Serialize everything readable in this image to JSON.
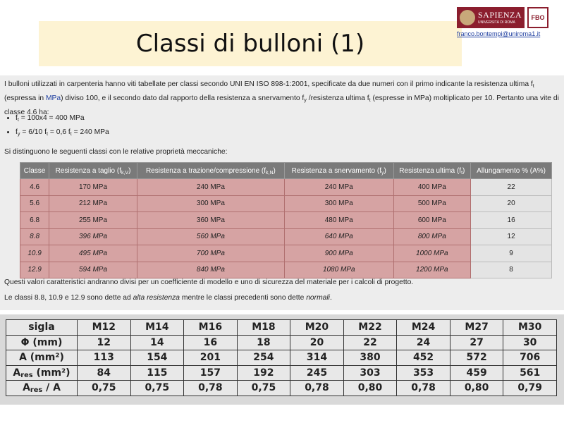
{
  "header": {
    "title": "Classi di bulloni (1)",
    "logo_name": "SAPIENZA",
    "logo_sub": "UNIVERSITÀ DI ROMA",
    "email": "franco.bontempi@uniroma1.it"
  },
  "intro": [
    {
      "text": "I bulloni utilizzati in carpenteria hanno viti tabellate per classi secondo UNI EN ISO 898-1:2001, specificate da due numeri con il primo indicante la resistenza ultima f",
      "sub": "t"
    },
    {
      "text": " (espressa in "
    },
    {
      "text": "MPa",
      "link": true
    },
    {
      "text": ") diviso 100, e il secondo dato dal rapporto della resistenza a snervamento f",
      "sub": "y"
    },
    {
      "text": " /resistenza ultima f",
      "sub": "t"
    },
    {
      "text": " (espresse in MPa) moltiplicato per 10. Pertanto una vite di classe 4.6 ha:"
    }
  ],
  "bullets": [
    [
      {
        "text": "f",
        "sub": "t"
      },
      {
        "text": " = 100x4 = 400 MPa"
      }
    ],
    [
      {
        "text": "f",
        "sub": "y"
      },
      {
        "text": " = 6/10 f",
        "sub": "t"
      },
      {
        "text": " = 0,6 f",
        "sub": "t"
      },
      {
        "text": " = 240 MPa"
      }
    ]
  ],
  "lead": "Si distinguono le seguenti classi con le relative proprietà meccaniche:",
  "table": {
    "headers": [
      [
        {
          "text": "Classe"
        }
      ],
      [
        {
          "text": "Resistenza a taglio (f",
          "sub": "k,V"
        },
        {
          "text": ")"
        }
      ],
      [
        {
          "text": "Resistenza a trazione/compressione (f",
          "sub": "k,N"
        },
        {
          "text": ")"
        }
      ],
      [
        {
          "text": "Resistenza a snervamento (f",
          "sub": "y"
        },
        {
          "text": ")"
        }
      ],
      [
        {
          "text": "Resistenza ultima (f",
          "sub": "t"
        },
        {
          "text": ")"
        }
      ],
      [
        {
          "text": "Allungamento % (A%)"
        }
      ]
    ],
    "rows": [
      {
        "cells": [
          "4.6",
          "170 MPa",
          "240 MPa",
          "240 MPa",
          "400 MPa",
          "22"
        ],
        "italic": false
      },
      {
        "cells": [
          "5.6",
          "212 MPa",
          "300 MPa",
          "300 MPa",
          "500 MPa",
          "20"
        ],
        "italic": false
      },
      {
        "cells": [
          "6.8",
          "255 MPa",
          "360 MPa",
          "480 MPa",
          "600 MPa",
          "16"
        ],
        "italic": false
      },
      {
        "cells": [
          "8.8",
          "396 MPa",
          "560 MPa",
          "640 MPa",
          "800 MPa",
          "12"
        ],
        "italic": true
      },
      {
        "cells": [
          "10.9",
          "495 MPa",
          "700 MPa",
          "900 MPa",
          "1000 MPa",
          "9"
        ],
        "italic": true
      },
      {
        "cells": [
          "12.9",
          "594 MPa",
          "840 MPa",
          "1080 MPa",
          "1200 MPa",
          "8"
        ],
        "italic": true
      }
    ]
  },
  "notes": [
    [
      {
        "text": "Questi valori caratteristici andranno divisi per un coefficiente di modello e uno di sicurezza del materiale per i calcoli di progetto."
      }
    ],
    [
      {
        "text": "Le classi 8.8, 10.9 e 12.9 sono dette ad "
      },
      {
        "text": "alta resistenza",
        "italic": true
      },
      {
        "text": " mentre le classi precedenti sono dette "
      },
      {
        "text": "normali",
        "italic": true
      },
      {
        "text": "."
      }
    ]
  ],
  "table2": {
    "header": [
      [
        {
          "text": "sigla"
        }
      ],
      "M12",
      "M14",
      "M16",
      "M18",
      "M20",
      "M22",
      "M24",
      "M27",
      "M30"
    ],
    "rows": [
      [
        [
          {
            "text": "Φ (mm)"
          }
        ],
        "12",
        "14",
        "16",
        "18",
        "20",
        "22",
        "24",
        "27",
        "30"
      ],
      [
        [
          {
            "text": "A (mm²)"
          }
        ],
        "113",
        "154",
        "201",
        "254",
        "314",
        "380",
        "452",
        "572",
        "706"
      ],
      [
        [
          {
            "text": "A",
            "sub": "res"
          },
          {
            "text": " (mm²)"
          }
        ],
        "84",
        "115",
        "157",
        "192",
        "245",
        "303",
        "353",
        "459",
        "561"
      ],
      [
        [
          {
            "text": "A",
            "sub": "res"
          },
          {
            "text": " / A"
          }
        ],
        "0,75",
        "0,75",
        "0,78",
        "0,75",
        "0,78",
        "0,80",
        "0,78",
        "0,80",
        "0,79"
      ]
    ]
  }
}
